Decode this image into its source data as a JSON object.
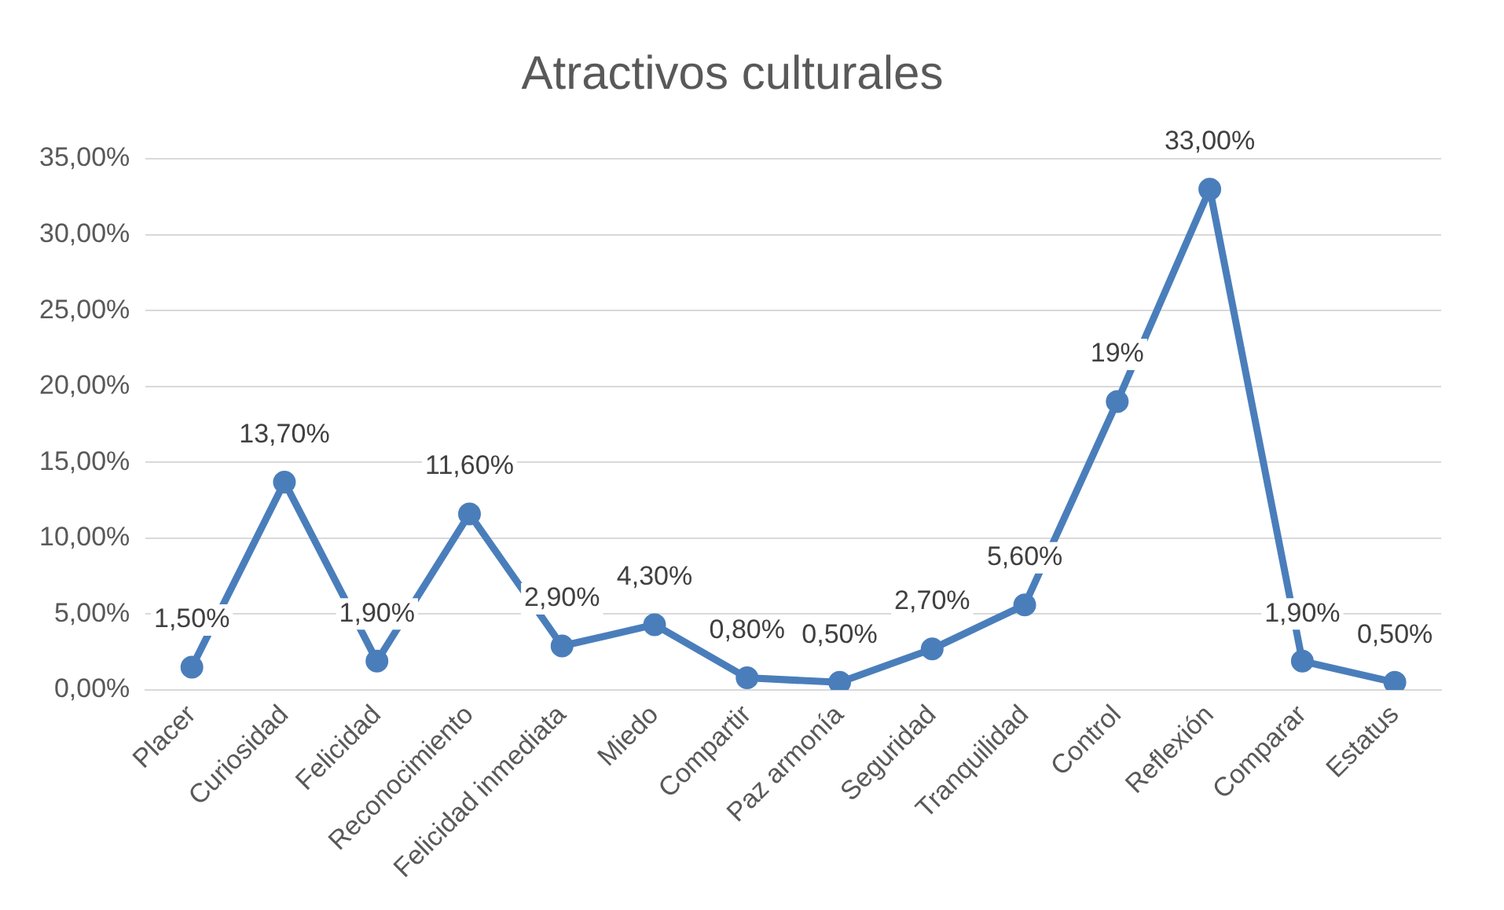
{
  "chart_data": {
    "type": "line",
    "title": "Atractivos culturales",
    "categories": [
      "Placer",
      "Curiosidad",
      "Felicidad",
      "Reconocimiento",
      "Felicidad inmediata",
      "Miedo",
      "Compartir",
      "Paz armonía",
      "Seguridad",
      "Tranquilidad",
      "Control",
      "Reflexión",
      "Comparar",
      "Estatus"
    ],
    "series": [
      {
        "color": "#4a7ebb",
        "values": [
          1.5,
          13.7,
          1.9,
          11.6,
          2.9,
          4.3,
          0.8,
          0.5,
          2.7,
          5.6,
          19,
          33,
          1.9,
          0.5
        ],
        "value_labels": [
          "1,50%",
          "13,70%",
          "1,90%",
          "11,60%",
          "2,90%",
          "4,30%",
          "0,80%",
          "0,50%",
          "2,70%",
          "5,60%",
          "19%",
          "33,00%",
          "1,90%",
          "0,50%"
        ]
      }
    ],
    "ylim": [
      0,
      35
    ],
    "yticks": [
      {
        "value": 0,
        "label": "0,00%"
      },
      {
        "value": 5,
        "label": "5,00%"
      },
      {
        "value": 10,
        "label": "10,00%"
      },
      {
        "value": 15,
        "label": "15,00%"
      },
      {
        "value": 20,
        "label": "20,00%"
      },
      {
        "value": 25,
        "label": "25,00%"
      },
      {
        "value": 30,
        "label": "30,00%"
      },
      {
        "value": 35,
        "label": "35,00%"
      }
    ],
    "grid": "y",
    "legend": false,
    "marker": "circle",
    "line_style": "solid"
  }
}
